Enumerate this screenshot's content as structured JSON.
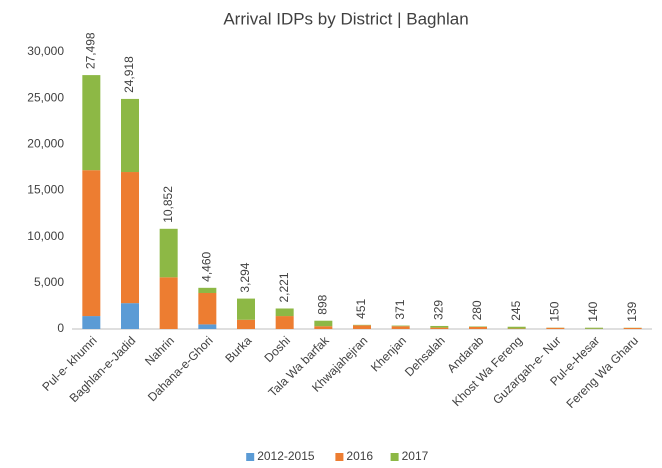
{
  "chart_data": {
    "type": "stacked_bar",
    "title": "Arrival IDPs by District | Baghlan",
    "categories": [
      "Pul-e- khumri",
      "Baghlan-e-Jadid",
      "Nahrin",
      "Dahana-e-Ghori",
      "Burka",
      "Doshi",
      "Tala Wa barfak",
      "Khwajahejran",
      "Khenjan",
      "Dehsalah",
      "Andarab",
      "Khost Wa Fereng",
      "Guzargah-e- Nur",
      "Pul-e-Hesar",
      "Fereng Wa Gharu"
    ],
    "series": [
      {
        "name": "2012-2015",
        "color": "#5b9bd5",
        "values": [
          1400,
          2800,
          0,
          500,
          0,
          0,
          0,
          0,
          0,
          0,
          0,
          0,
          0,
          0,
          0
        ]
      },
      {
        "name": "2016",
        "color": "#ed7d31",
        "values": [
          15800,
          14200,
          5600,
          3400,
          1000,
          1400,
          300,
          400,
          300,
          150,
          230,
          45,
          130,
          20,
          120
        ]
      },
      {
        "name": "2017",
        "color": "#8db845",
        "values": [
          10298,
          7918,
          5252,
          560,
          2294,
          821,
          598,
          51,
          71,
          179,
          50,
          200,
          20,
          120,
          19
        ]
      }
    ],
    "totals": [
      27498,
      24918,
      10852,
      4460,
      3294,
      2221,
      898,
      451,
      371,
      329,
      280,
      245,
      150,
      140,
      139
    ],
    "total_labels": [
      "27,498",
      "24,918",
      "10,852",
      "4,460",
      "3,294",
      "2,221",
      "898",
      "451",
      "371",
      "329",
      "280",
      "245",
      "150",
      "140",
      "139"
    ],
    "ylim": [
      0,
      30000
    ],
    "yticks": [
      0,
      {
        "value": 5000,
        "label": "5,000"
      },
      {
        "value": 10000,
        "label": "10,000"
      },
      {
        "value": 15000,
        "label": "15,000"
      },
      {
        "value": 20000,
        "label": "20,000"
      },
      {
        "value": 25000,
        "label": "25,000"
      },
      {
        "value": 30000,
        "label": "30,000"
      }
    ],
    "grid": false,
    "legend": "bottom"
  }
}
